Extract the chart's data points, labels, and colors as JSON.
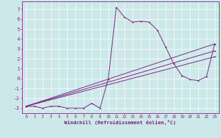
{
  "xlabel": "Windchill (Refroidissement éolien,°C)",
  "bg_color": "#cce8e8",
  "line_color": "#7b2080",
  "xlim": [
    -0.5,
    23.5
  ],
  "ylim": [
    -3.5,
    7.8
  ],
  "xticks": [
    0,
    1,
    2,
    3,
    4,
    5,
    6,
    7,
    8,
    9,
    10,
    11,
    12,
    13,
    14,
    15,
    16,
    17,
    18,
    19,
    20,
    21,
    22,
    23
  ],
  "yticks": [
    -3,
    -2,
    -1,
    0,
    1,
    2,
    3,
    4,
    5,
    6,
    7
  ],
  "line_main": {
    "x": [
      0,
      1,
      2,
      3,
      4,
      5,
      6,
      7,
      8,
      9,
      10,
      11,
      12,
      13,
      14,
      15,
      16,
      17,
      18,
      19,
      20,
      21,
      22,
      23
    ],
    "y": [
      -2.8,
      -2.8,
      -3.0,
      -2.8,
      -2.8,
      -3.0,
      -3.0,
      -3.0,
      -2.5,
      -3.0,
      -0.1,
      7.2,
      6.2,
      5.7,
      5.8,
      5.7,
      4.9,
      3.2,
      1.5,
      0.3,
      -0.1,
      -0.2,
      0.2,
      3.5
    ]
  },
  "line_diag1": {
    "x": [
      0,
      23
    ],
    "y": [
      -2.8,
      3.5
    ]
  },
  "line_diag2": {
    "x": [
      0,
      23
    ],
    "y": [
      -2.8,
      2.8
    ]
  },
  "line_diag3": {
    "x": [
      0,
      23
    ],
    "y": [
      -2.8,
      2.2
    ]
  }
}
